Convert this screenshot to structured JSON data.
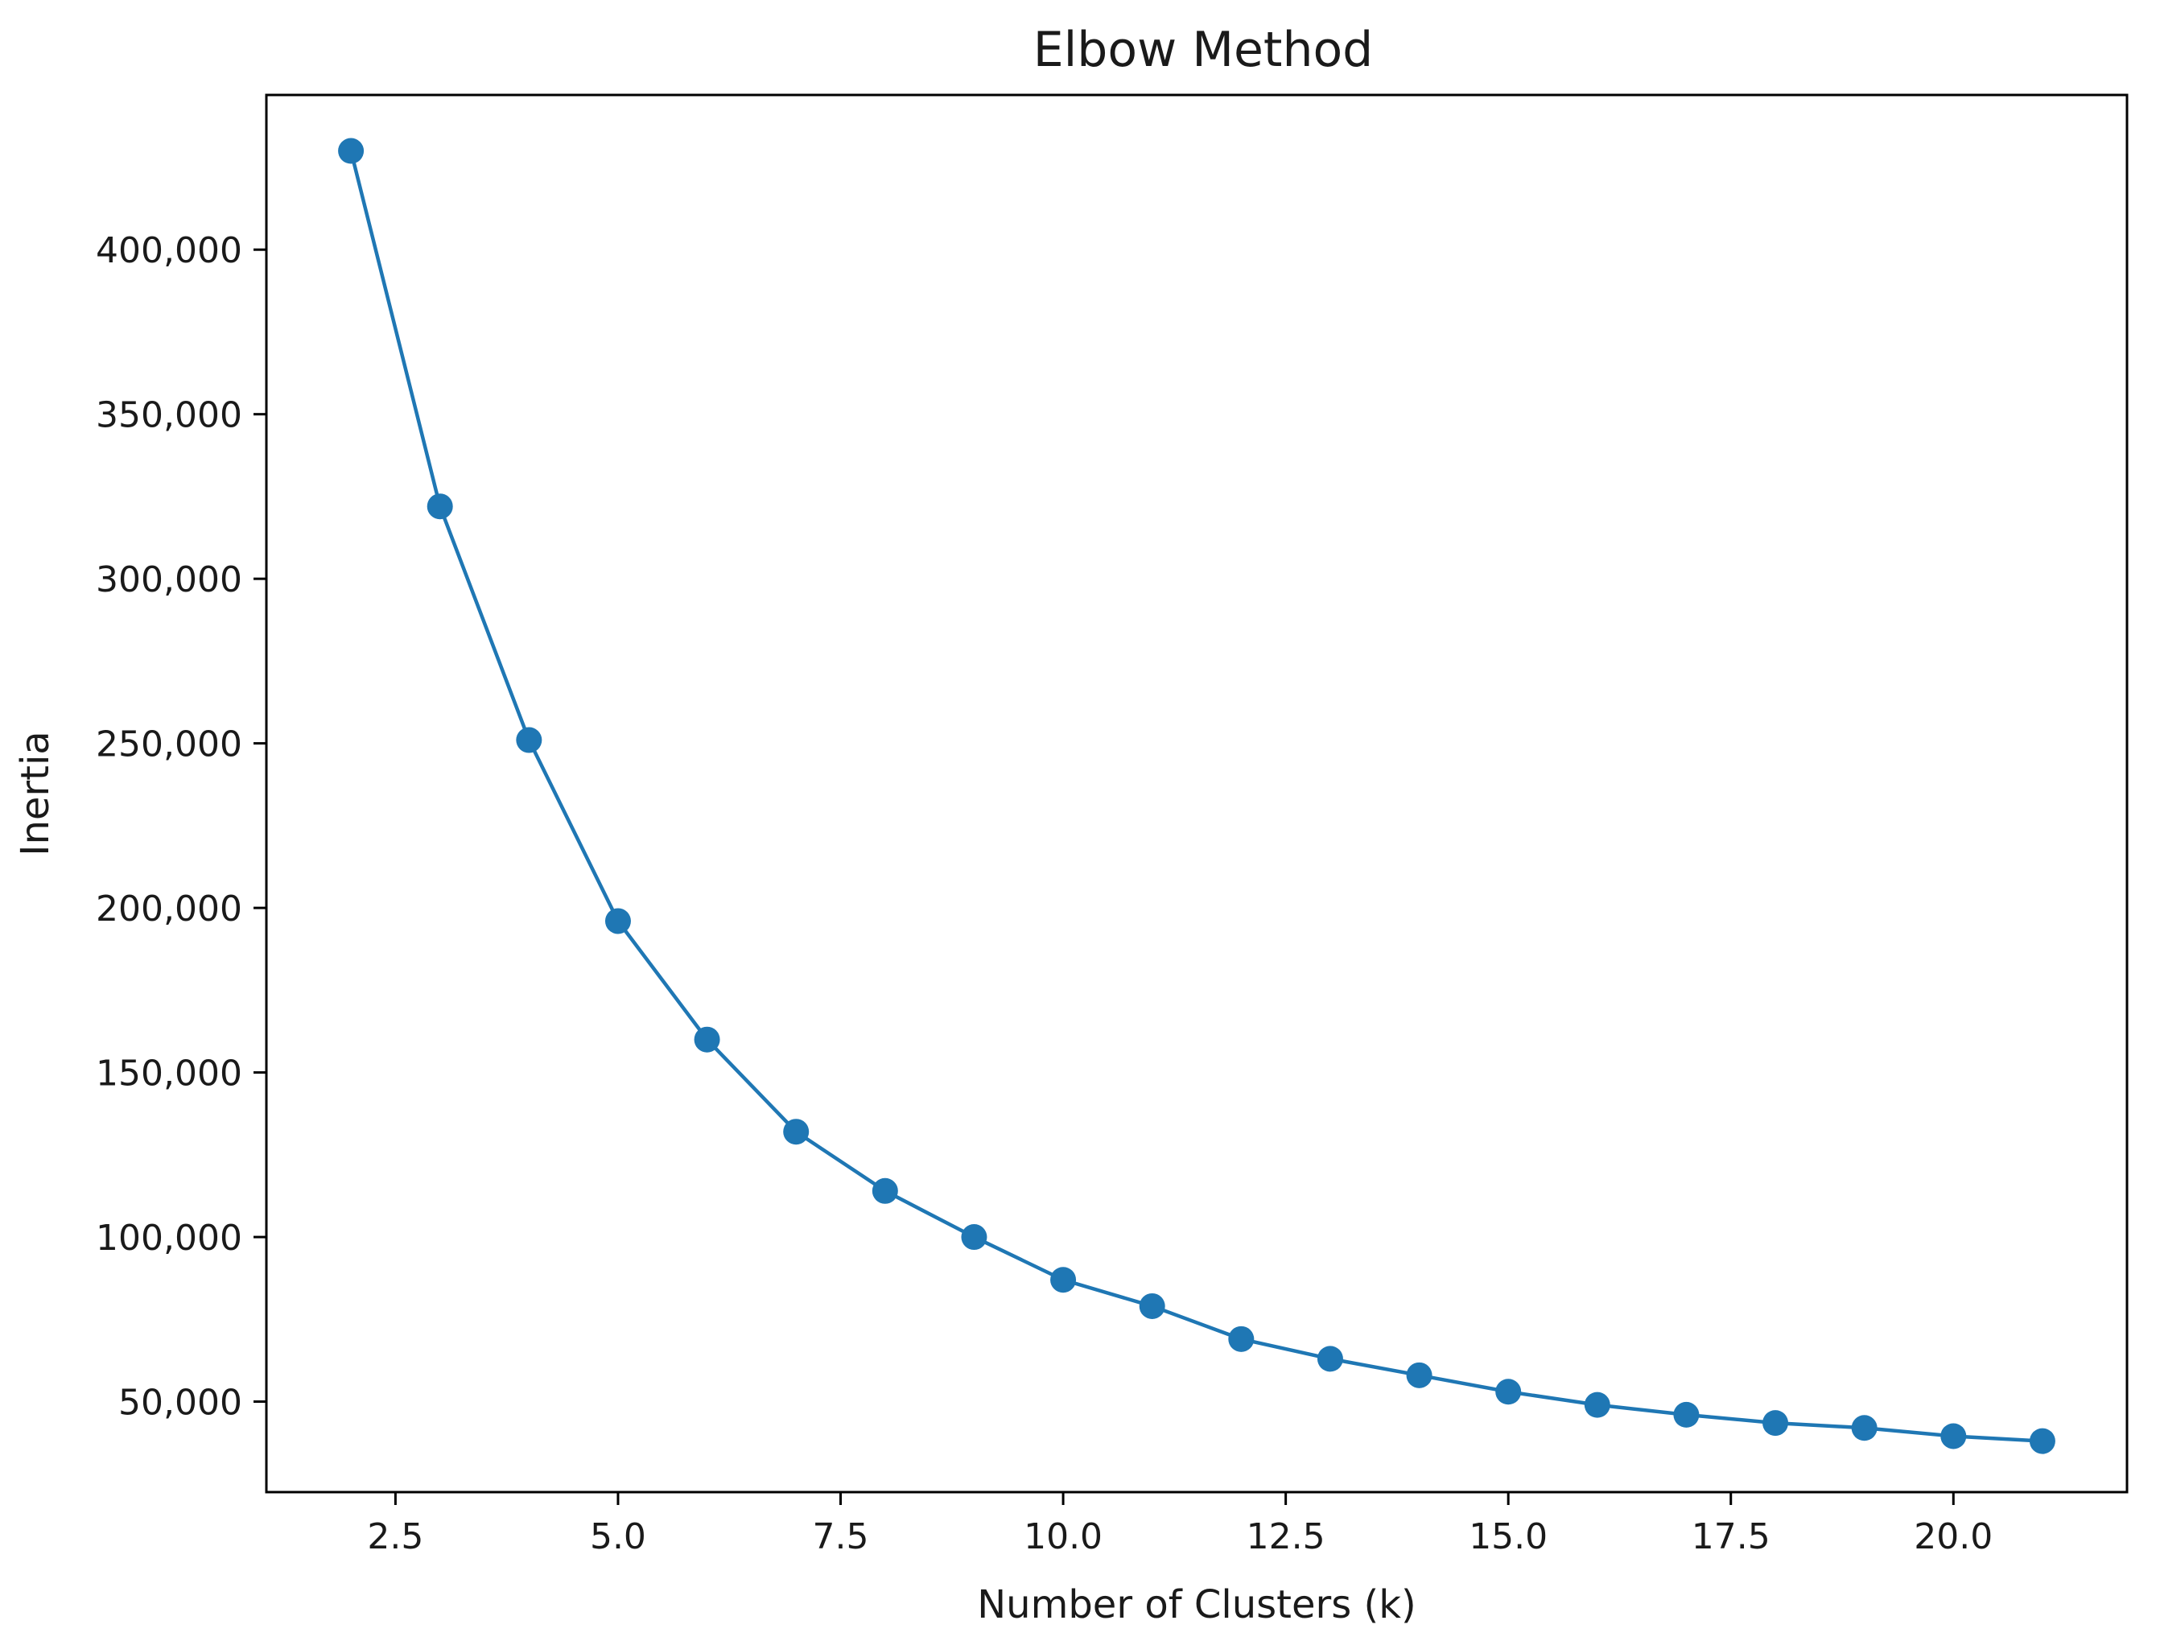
{
  "chart_data": {
    "type": "line",
    "title": "Elbow Method",
    "xlabel": "Number of Clusters (k)",
    "ylabel": "Inertia",
    "xlim": [
      1.05,
      21.95
    ],
    "ylim": [
      22500,
      447000
    ],
    "x_ticks": [
      2.5,
      5.0,
      7.5,
      10.0,
      12.5,
      15.0,
      17.5,
      20.0
    ],
    "x_tick_labels": [
      "2.5",
      "5.0",
      "7.5",
      "10.0",
      "12.5",
      "15.0",
      "17.5",
      "20.0"
    ],
    "y_ticks": [
      50000,
      100000,
      150000,
      200000,
      250000,
      300000,
      350000,
      400000
    ],
    "y_tick_labels": [
      "50,000",
      "100,000",
      "150,000",
      "200,000",
      "250,000",
      "300,000",
      "350,000",
      "400,000"
    ],
    "grid": false,
    "series": [
      {
        "color": "#1f77b4",
        "marker": "circle",
        "x": [
          2,
          3,
          4,
          5,
          6,
          7,
          8,
          9,
          10,
          11,
          12,
          13,
          14,
          15,
          16,
          17,
          18,
          19,
          20,
          21
        ],
        "y": [
          430000,
          322000,
          251000,
          196000,
          160000,
          132000,
          114000,
          100000,
          87000,
          79000,
          69000,
          63000,
          58000,
          53000,
          49000,
          46000,
          43500,
          42000,
          39500,
          38000
        ]
      }
    ]
  }
}
